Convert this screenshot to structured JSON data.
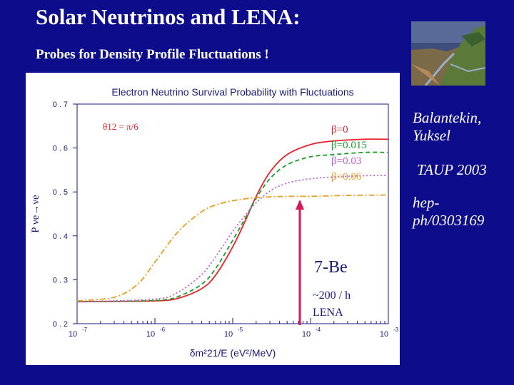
{
  "slide": {
    "title": "Solar Neutrinos and LENA:",
    "subtitle": "Probes for Density Profile Fluctuations !"
  },
  "sidebar": {
    "author": "Balantekin, Yuksel",
    "conference": "TAUP 2003",
    "reference": "hep-ph/0303169"
  },
  "annotation": {
    "isotope": "7-Be",
    "rate": "~200 / h",
    "detector": "LENA"
  },
  "chart_data": {
    "type": "line",
    "title": "Electron Neutrino Survival Probability with Fluctuations",
    "xlabel": "δm²21/E (eV²/MeV)",
    "ylabel": "P νe→νe",
    "x_scale": "log",
    "xlim": [
      1e-07,
      0.001
    ],
    "ylim": [
      0.2,
      0.7
    ],
    "x_ticks": [
      1e-07,
      1e-06,
      1e-05,
      0.0001,
      0.001
    ],
    "x_tick_labels": [
      {
        "base": "10",
        "exp": "-7"
      },
      {
        "base": "10",
        "exp": "-6"
      },
      {
        "base": "10",
        "exp": "-5"
      },
      {
        "base": "10",
        "exp": "-4"
      },
      {
        "base": "10",
        "exp": "-3"
      }
    ],
    "y_ticks": [
      0.2,
      0.3,
      0.4,
      0.5,
      0.6,
      0.7
    ],
    "y_tick_labels": [
      "0.2",
      "0.3",
      "0.4",
      "0.5",
      "0.6",
      "0.7"
    ],
    "annotation_text": "θ12 = π/6",
    "legend_position": "top-right",
    "series": [
      {
        "name": "β=0",
        "color": "#e8222a",
        "dash": "",
        "x": [
          1e-07,
          1e-06,
          2e-06,
          4e-06,
          6e-06,
          1e-05,
          1.5e-05,
          2e-05,
          3e-05,
          5e-05,
          0.0001,
          0.0002,
          0.0005,
          0.001
        ],
        "y": [
          0.25,
          0.252,
          0.258,
          0.28,
          0.31,
          0.375,
          0.44,
          0.49,
          0.545,
          0.585,
          0.608,
          0.616,
          0.62,
          0.62
        ]
      },
      {
        "name": "β=0.015",
        "color": "#1a9e2a",
        "dash": "6,4",
        "x": [
          1e-07,
          1e-06,
          2e-06,
          4e-06,
          6e-06,
          1e-05,
          1.5e-05,
          2e-05,
          3e-05,
          5e-05,
          0.0001,
          0.0002,
          0.0005,
          0.001
        ],
        "y": [
          0.25,
          0.253,
          0.262,
          0.29,
          0.325,
          0.39,
          0.445,
          0.485,
          0.53,
          0.562,
          0.58,
          0.585,
          0.59,
          0.59
        ]
      },
      {
        "name": "β=0.03",
        "color": "#c060d8",
        "dash": "2,3",
        "x": [
          1e-07,
          1e-06,
          2e-06,
          4e-06,
          6e-06,
          1e-05,
          1.5e-05,
          2e-05,
          3e-05,
          5e-05,
          0.0001,
          0.0002,
          0.0005,
          0.001
        ],
        "y": [
          0.25,
          0.256,
          0.272,
          0.312,
          0.352,
          0.41,
          0.45,
          0.475,
          0.502,
          0.52,
          0.53,
          0.534,
          0.537,
          0.538
        ]
      },
      {
        "name": "β=0.06",
        "color": "#e8a020",
        "dash": "8,3,2,3",
        "x": [
          1e-07,
          3e-07,
          6e-07,
          1e-06,
          2e-06,
          4e-06,
          6e-06,
          1e-05,
          2e-05,
          5e-05,
          0.0001,
          0.0003,
          0.001
        ],
        "y": [
          0.252,
          0.26,
          0.29,
          0.34,
          0.41,
          0.455,
          0.47,
          0.48,
          0.487,
          0.49,
          0.49,
          0.492,
          0.493
        ]
      }
    ]
  }
}
